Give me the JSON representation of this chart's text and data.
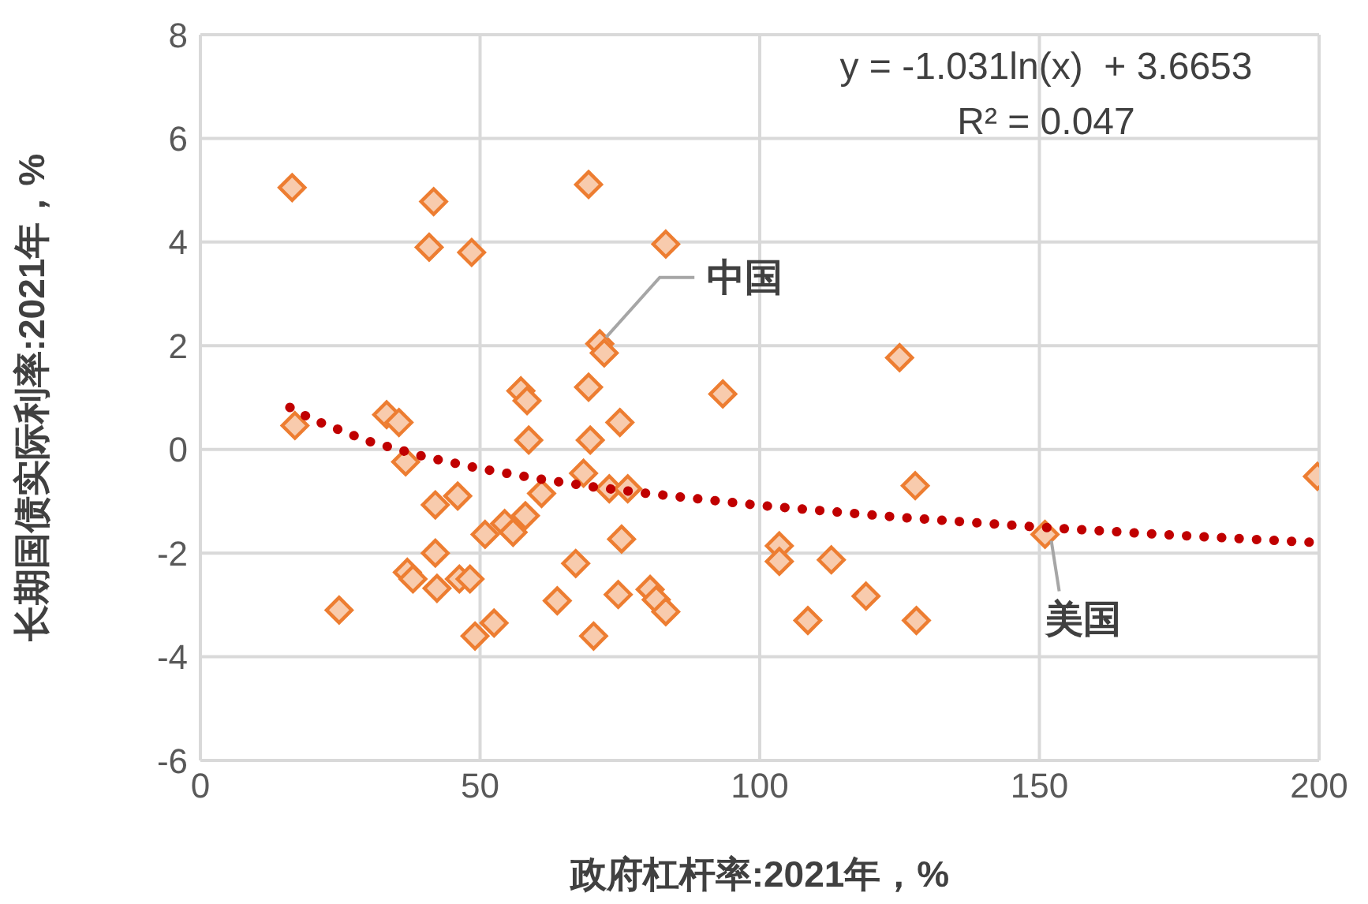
{
  "chart_data": {
    "type": "scatter",
    "xlabel": "政府杠杆率:2021年，%",
    "ylabel": "长期国债实际利率:2021年，%",
    "xlim": [
      0,
      200
    ],
    "xticks": [
      0,
      50,
      100,
      150,
      200
    ],
    "ylim": [
      -6,
      8
    ],
    "yticks": [
      -6,
      -4,
      -2,
      0,
      2,
      4,
      6,
      8
    ],
    "grid": true,
    "legend": false,
    "series": [
      {
        "color": "#ed7d31",
        "marker": "diamond",
        "x": [
          16.4,
          16.9,
          24.8,
          33.3,
          35.5,
          36.7,
          37,
          38,
          41.7,
          40.9,
          48.5,
          42,
          46,
          42,
          42.3,
          46.3,
          48.2,
          49.1,
          52.5,
          50.9,
          54.4,
          55.9,
          57.3,
          58.4,
          58.7,
          58.1,
          61,
          63.8,
          67.1,
          68.5,
          69.4,
          69.4,
          69.7,
          70.3,
          71.4,
          72.2,
          73.1,
          75,
          75.3,
          74.7,
          76.4,
          80.4,
          81.5,
          83.2,
          83.2,
          93.4,
          103.5,
          103.5,
          112.8,
          119,
          108.6,
          125,
          127.8,
          128,
          151,
          199.7
        ],
        "values": [
          5.05,
          0.46,
          -3.1,
          0.67,
          0.52,
          -0.24,
          -2.37,
          -2.5,
          4.78,
          3.9,
          3.8,
          -1.07,
          -0.9,
          -2,
          -2.68,
          -2.5,
          -2.5,
          -3.6,
          -3.35,
          -1.64,
          -1.43,
          -1.6,
          1.13,
          0.94,
          0.18,
          -1.28,
          -0.85,
          -2.92,
          -2.2,
          -0.46,
          5.11,
          1.2,
          0.18,
          -3.6,
          2.04,
          1.86,
          -0.76,
          0.52,
          -1.73,
          -2.8,
          -0.76,
          -2.7,
          -2.9,
          -3.13,
          3.96,
          1.07,
          -1.86,
          -2.16,
          -2.13,
          -2.83,
          -3.3,
          1.77,
          -0.7,
          -3.3,
          -1.64,
          -0.52
        ]
      },
      {
        "type": "line",
        "color": "#c00000",
        "line_style": "dotted",
        "marker": "none",
        "x": [
          16,
          20,
          30,
          40,
          50,
          60,
          70,
          80,
          100,
          125,
          150,
          175,
          200
        ],
        "values": [
          0.81,
          0.58,
          0.16,
          -0.14,
          -0.37,
          -0.56,
          -0.72,
          -0.85,
          -1.08,
          -1.31,
          -1.5,
          -1.66,
          -1.8
        ]
      }
    ],
    "annotations": [
      "y = -1.031ln(x)  + 3.6653",
      "R² = 0.047",
      {
        "text": "中国",
        "x": 71.4,
        "y": 2.04
      },
      {
        "text": "美国",
        "x": 151,
        "y": -1.64
      }
    ]
  }
}
